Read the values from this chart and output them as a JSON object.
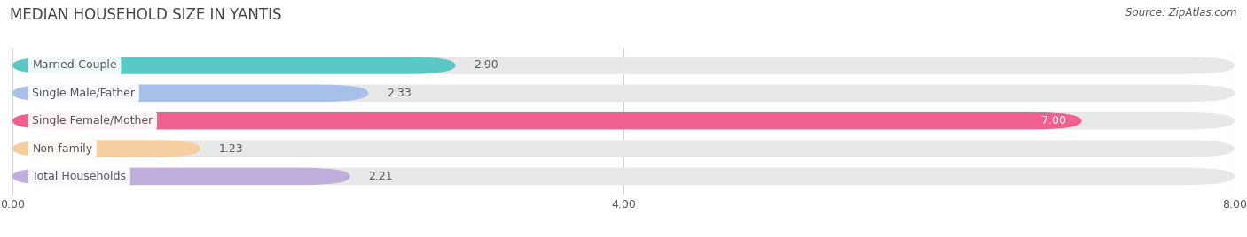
{
  "title": "MEDIAN HOUSEHOLD SIZE IN YANTIS",
  "source": "Source: ZipAtlas.com",
  "categories": [
    "Married-Couple",
    "Single Male/Father",
    "Single Female/Mother",
    "Non-family",
    "Total Households"
  ],
  "values": [
    2.9,
    2.33,
    7.0,
    1.23,
    2.21
  ],
  "bar_colors": [
    "#5BC8C8",
    "#A8BFEA",
    "#F06090",
    "#F5CFA0",
    "#C0AEDD"
  ],
  "bar_bg_color": "#E8E8E8",
  "xlim": [
    0,
    8.0
  ],
  "xticks": [
    0.0,
    4.0,
    8.0
  ],
  "xtick_labels": [
    "0.00",
    "4.00",
    "8.00"
  ],
  "title_fontsize": 12,
  "source_fontsize": 8.5,
  "label_fontsize": 9,
  "value_fontsize": 9,
  "bar_height": 0.62,
  "background_color": "#FFFFFF",
  "label_bg_color": "#FFFFFF",
  "grid_color": "#D0D0D0",
  "text_color": "#555555",
  "title_color": "#444444"
}
